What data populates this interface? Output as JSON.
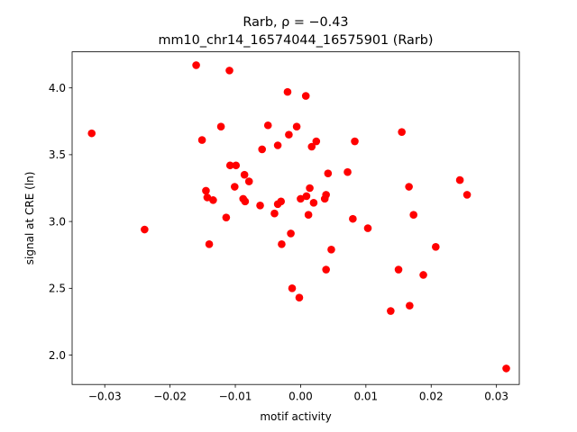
{
  "chart_data": {
    "type": "scatter",
    "title_line1": "Rarb, ρ = −0.43",
    "title_line2": "mm10_chr14_16574044_16575901 (Rarb)",
    "xlabel": "motif activity",
    "ylabel": "signal at CRE (ln)",
    "xlim": [
      -0.035,
      0.0335
    ],
    "ylim": [
      1.78,
      4.27
    ],
    "xticks": [
      -0.03,
      -0.02,
      -0.01,
      0.0,
      0.01,
      0.02,
      0.03
    ],
    "xtick_labels": [
      "−0.03",
      "−0.02",
      "−0.01",
      "0.00",
      "0.01",
      "0.02",
      "0.03"
    ],
    "yticks": [
      2.0,
      2.5,
      3.0,
      3.5,
      4.0
    ],
    "ytick_labels": [
      "2.0",
      "2.5",
      "3.0",
      "3.5",
      "4.0"
    ],
    "grid": false,
    "marker_color": "#ff0000",
    "points": [
      {
        "x": -0.032,
        "y": 3.66
      },
      {
        "x": -0.0239,
        "y": 2.94
      },
      {
        "x": -0.016,
        "y": 4.17
      },
      {
        "x": -0.0151,
        "y": 3.61
      },
      {
        "x": -0.0145,
        "y": 3.23
      },
      {
        "x": -0.0143,
        "y": 3.18
      },
      {
        "x": -0.014,
        "y": 2.83
      },
      {
        "x": -0.0134,
        "y": 3.16
      },
      {
        "x": -0.0122,
        "y": 3.71
      },
      {
        "x": -0.0114,
        "y": 3.03
      },
      {
        "x": -0.0109,
        "y": 4.13
      },
      {
        "x": -0.0108,
        "y": 3.42
      },
      {
        "x": -0.0101,
        "y": 3.26
      },
      {
        "x": -0.0099,
        "y": 3.42
      },
      {
        "x": -0.0088,
        "y": 3.17
      },
      {
        "x": -0.0086,
        "y": 3.35
      },
      {
        "x": -0.0085,
        "y": 3.15
      },
      {
        "x": -0.0079,
        "y": 3.3
      },
      {
        "x": -0.0062,
        "y": 3.12
      },
      {
        "x": -0.0059,
        "y": 3.54
      },
      {
        "x": -0.005,
        "y": 3.72
      },
      {
        "x": -0.004,
        "y": 3.06
      },
      {
        "x": -0.0035,
        "y": 3.57
      },
      {
        "x": -0.0035,
        "y": 3.13
      },
      {
        "x": -0.003,
        "y": 3.15
      },
      {
        "x": -0.0029,
        "y": 2.83
      },
      {
        "x": -0.002,
        "y": 3.97
      },
      {
        "x": -0.0018,
        "y": 3.65
      },
      {
        "x": -0.0015,
        "y": 2.91
      },
      {
        "x": -0.0013,
        "y": 2.5
      },
      {
        "x": -0.0006,
        "y": 3.71
      },
      {
        "x": -0.0002,
        "y": 2.43
      },
      {
        "x": 0.0,
        "y": 3.17
      },
      {
        "x": 0.0008,
        "y": 3.94
      },
      {
        "x": 0.0009,
        "y": 3.19
      },
      {
        "x": 0.0012,
        "y": 3.05
      },
      {
        "x": 0.0014,
        "y": 3.25
      },
      {
        "x": 0.0017,
        "y": 3.56
      },
      {
        "x": 0.002,
        "y": 3.14
      },
      {
        "x": 0.0024,
        "y": 3.6
      },
      {
        "x": 0.0037,
        "y": 3.17
      },
      {
        "x": 0.0039,
        "y": 3.2
      },
      {
        "x": 0.0039,
        "y": 2.64
      },
      {
        "x": 0.0042,
        "y": 3.36
      },
      {
        "x": 0.0047,
        "y": 2.79
      },
      {
        "x": 0.0072,
        "y": 3.37
      },
      {
        "x": 0.008,
        "y": 3.02
      },
      {
        "x": 0.0083,
        "y": 3.6
      },
      {
        "x": 0.0103,
        "y": 2.95
      },
      {
        "x": 0.0138,
        "y": 2.33
      },
      {
        "x": 0.015,
        "y": 2.64
      },
      {
        "x": 0.0155,
        "y": 3.67
      },
      {
        "x": 0.0166,
        "y": 3.26
      },
      {
        "x": 0.0167,
        "y": 2.37
      },
      {
        "x": 0.0173,
        "y": 3.05
      },
      {
        "x": 0.0188,
        "y": 2.6
      },
      {
        "x": 0.0207,
        "y": 2.81
      },
      {
        "x": 0.0244,
        "y": 3.31
      },
      {
        "x": 0.0255,
        "y": 3.2
      },
      {
        "x": 0.0315,
        "y": 1.9
      }
    ]
  }
}
